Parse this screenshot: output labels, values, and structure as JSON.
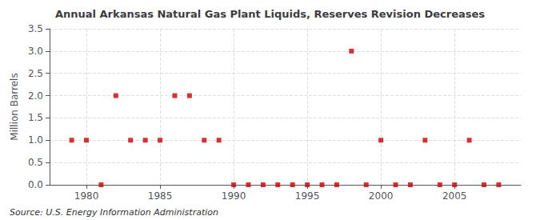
{
  "chart_data": {
    "type": "scatter",
    "title": "Annual Arkansas Natural Gas Plant Liquids, Reserves Revision Decreases",
    "ylabel": "Million Barrels",
    "annotations": [
      "Source: U.S. Energy Information Administration"
    ],
    "x": [
      1979,
      1980,
      1981,
      1982,
      1983,
      1984,
      1985,
      1986,
      1987,
      1988,
      1989,
      1990,
      1991,
      1992,
      1993,
      1994,
      1995,
      1996,
      1997,
      1998,
      1999,
      2000,
      2001,
      2002,
      2003,
      2004,
      2005,
      2006,
      2007,
      2008
    ],
    "values": [
      1.0,
      1.0,
      0.0,
      2.0,
      1.0,
      1.0,
      1.0,
      2.0,
      2.0,
      1.0,
      1.0,
      0.0,
      0.0,
      0.0,
      0.0,
      0.0,
      0.0,
      0.0,
      0.0,
      3.0,
      0.0,
      1.0,
      0.0,
      0.0,
      1.0,
      0.0,
      0.0,
      1.0,
      0.0,
      0.0
    ],
    "color": "#cc0000",
    "marker": "square",
    "xlim": [
      1977.5,
      2009.5
    ],
    "xticks": [
      1980,
      1985,
      1990,
      1995,
      2000,
      2005
    ],
    "ylim": [
      0.0,
      3.5
    ],
    "yticks": [
      {
        "value": 0.0,
        "label": "0.0"
      },
      {
        "value": 0.5,
        "label": "0.5"
      },
      {
        "value": 1.0,
        "label": "1.0"
      },
      {
        "value": 1.5,
        "label": "1.5"
      },
      {
        "value": 2.0,
        "label": "2.0"
      },
      {
        "value": 2.5,
        "label": "2.5"
      },
      {
        "value": 3.0,
        "label": "3.0"
      },
      {
        "value": 3.5,
        "label": "3.5"
      }
    ],
    "grid": true
  }
}
